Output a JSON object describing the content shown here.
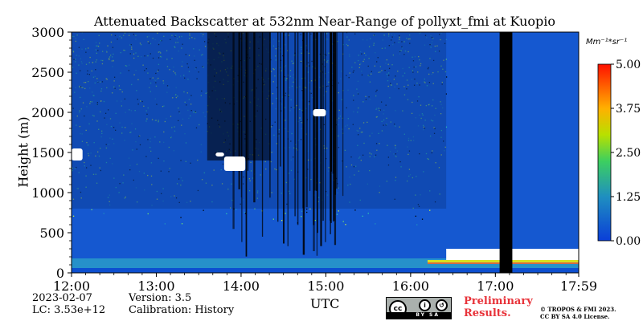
{
  "chart_data": {
    "type": "heatmap",
    "title": "Attenuated Backscatter at 532nm Near-Range of pollyxt_fmi at Kuopio",
    "xlabel": "UTC",
    "ylabel": "Height (m)",
    "x_ticks": [
      "12:00",
      "13:00",
      "14:00",
      "15:00",
      "16:00",
      "17:00",
      "17:59"
    ],
    "x_tick_hours": [
      12.0,
      13.0,
      14.0,
      15.0,
      16.0,
      17.0,
      17.983
    ],
    "xlim_hours": [
      12.0,
      17.983
    ],
    "y_ticks": [
      0,
      500,
      1000,
      1500,
      2000,
      2500,
      3000
    ],
    "ylim": [
      0,
      3000
    ],
    "colorbar": {
      "unit": "Mm⁻¹*sr⁻¹",
      "ticks": [
        "0.00",
        "1.25",
        "2.50",
        "3.75",
        "5.00"
      ],
      "range": [
        0,
        5
      ]
    },
    "no_data_interval_hours": [
      17.05,
      17.2
    ]
  },
  "footer": {
    "date": "2023-02-07",
    "lc": "LC: 3.53e+12",
    "version": "Version: 3.5",
    "calibration": "Calibration: History",
    "preliminary_line1": "Preliminary",
    "preliminary_line2": "Results.",
    "copyright_line1": "© TROPOS & FMI 2023.",
    "copyright_line2": "CC BY SA 4.0 License.",
    "cc_badge_text": "BY SA"
  },
  "colors": {
    "low": "#0a3ed8",
    "mid": "#39a0c0",
    "high": "#ff2000",
    "no_data": "#000000"
  }
}
